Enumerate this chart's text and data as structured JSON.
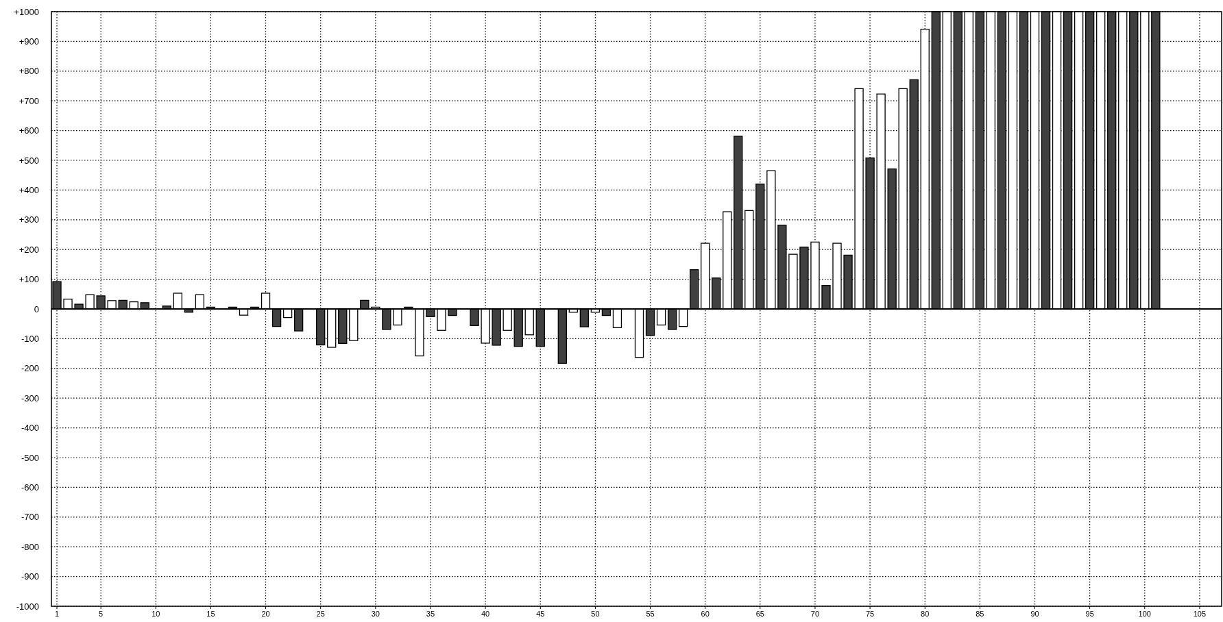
{
  "chart_data": {
    "type": "bar",
    "x": [
      1,
      2,
      3,
      4,
      5,
      6,
      7,
      8,
      9,
      11,
      12,
      13,
      14,
      15,
      17,
      18,
      19,
      20,
      21,
      22,
      23,
      25,
      26,
      27,
      28,
      29,
      30,
      31,
      32,
      33,
      34,
      35,
      36,
      37,
      39,
      40,
      41,
      42,
      43,
      44,
      45,
      47,
      48,
      49,
      50,
      51,
      52,
      54,
      55,
      56,
      57,
      58,
      59,
      60,
      61,
      62,
      63,
      64,
      65,
      66,
      67,
      68,
      69,
      70,
      71,
      72,
      73,
      74,
      75,
      76,
      77,
      78,
      79,
      80,
      81,
      82,
      83,
      84,
      85,
      86,
      87,
      88,
      89,
      90,
      91,
      92,
      93,
      94,
      95,
      96,
      97,
      98,
      99,
      100,
      101
    ],
    "values": [
      92,
      33,
      16,
      48,
      44,
      28,
      29,
      24,
      21,
      10,
      53,
      -11,
      48,
      6,
      6,
      -21,
      6,
      53,
      -59,
      -29,
      -74,
      -121,
      -129,
      -116,
      -106,
      29,
      6,
      -69,
      -54,
      6,
      -158,
      -26,
      -72,
      -22,
      -56,
      -115,
      -122,
      -72,
      -126,
      -87,
      -126,
      -183,
      -11,
      -60,
      -11,
      -22,
      -63,
      -163,
      -89,
      -54,
      -69,
      -59,
      132,
      221,
      104,
      327,
      581,
      331,
      420,
      465,
      282,
      184,
      208,
      225,
      79,
      221,
      181,
      741,
      508,
      723,
      471,
      741,
      771,
      941,
      1000,
      1000,
      1000,
      1000,
      1000,
      1000,
      1000,
      1000,
      1000,
      1000,
      1000,
      1000,
      1000,
      1000,
      1000,
      1000,
      1000,
      1000,
      1000,
      1000,
      1000
    ],
    "colors": [
      "#404040",
      "#ffffff",
      "#404040",
      "#ffffff",
      "#404040",
      "#ffffff",
      "#404040",
      "#ffffff",
      "#404040",
      "#404040",
      "#ffffff",
      "#404040",
      "#ffffff",
      "#404040",
      "#404040",
      "#ffffff",
      "#404040",
      "#ffffff",
      "#404040",
      "#ffffff",
      "#404040",
      "#404040",
      "#ffffff",
      "#404040",
      "#ffffff",
      "#404040",
      "#ffffff",
      "#404040",
      "#ffffff",
      "#404040",
      "#ffffff",
      "#404040",
      "#ffffff",
      "#404040",
      "#404040",
      "#ffffff",
      "#404040",
      "#ffffff",
      "#404040",
      "#ffffff",
      "#404040",
      "#404040",
      "#ffffff",
      "#404040",
      "#ffffff",
      "#404040",
      "#ffffff",
      "#ffffff",
      "#404040",
      "#ffffff",
      "#404040",
      "#ffffff",
      "#404040",
      "#ffffff",
      "#404040",
      "#ffffff",
      "#404040",
      "#ffffff",
      "#404040",
      "#ffffff",
      "#404040",
      "#ffffff",
      "#404040",
      "#ffffff",
      "#404040",
      "#ffffff",
      "#404040",
      "#ffffff",
      "#404040",
      "#ffffff",
      "#404040",
      "#ffffff",
      "#404040",
      "#ffffff",
      "#404040",
      "#ffffff",
      "#404040",
      "#ffffff",
      "#404040",
      "#ffffff",
      "#404040",
      "#ffffff",
      "#404040",
      "#ffffff",
      "#404040",
      "#ffffff",
      "#404040",
      "#ffffff",
      "#404040",
      "#ffffff",
      "#404040",
      "#ffffff",
      "#404040",
      "#ffffff",
      "#404040"
    ],
    "xlim": [
      0.5,
      107
    ],
    "xticks": [
      1,
      5,
      10,
      15,
      20,
      25,
      30,
      35,
      40,
      45,
      50,
      55,
      60,
      65,
      70,
      75,
      80,
      85,
      90,
      95,
      100,
      105
    ],
    "ylim": [
      -1000,
      1000
    ],
    "yticks": [
      -1000,
      -900,
      -800,
      -700,
      -600,
      -500,
      -400,
      -300,
      -200,
      -100,
      0,
      {
        "value": 100,
        "label": "+100"
      },
      {
        "value": 200,
        "label": "+200"
      },
      {
        "value": 300,
        "label": "+300"
      },
      {
        "value": 400,
        "label": "+400"
      },
      {
        "value": 500,
        "label": "+500"
      },
      {
        "value": 600,
        "label": "+600"
      },
      {
        "value": 700,
        "label": "+700"
      },
      {
        "value": 800,
        "label": "+800"
      },
      {
        "value": 900,
        "label": "+900"
      },
      {
        "value": 1000,
        "label": "+1000"
      }
    ],
    "grid": true
  }
}
